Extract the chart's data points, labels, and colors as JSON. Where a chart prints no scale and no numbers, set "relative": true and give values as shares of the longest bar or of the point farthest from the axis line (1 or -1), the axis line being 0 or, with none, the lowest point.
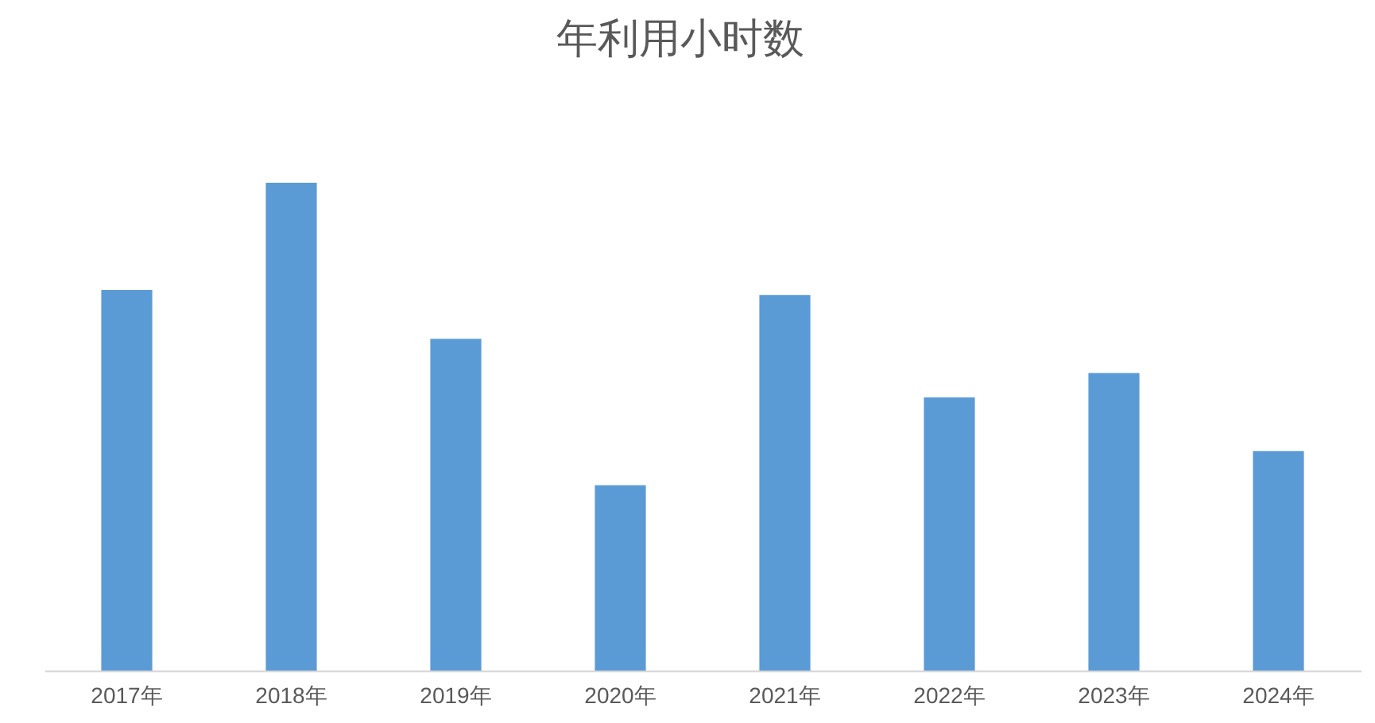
{
  "chart_data": {
    "type": "bar",
    "title": "年利用小时数",
    "categories": [
      "2017年",
      "2018年",
      "2019年",
      "2020年",
      "2021年",
      "2022年",
      "2023年",
      "2024年"
    ],
    "values": [
      0.78,
      1,
      0.68,
      0.38,
      0.77,
      0.56,
      0.61,
      0.45
    ],
    "color": "#5b9bd5",
    "relative": true
  }
}
